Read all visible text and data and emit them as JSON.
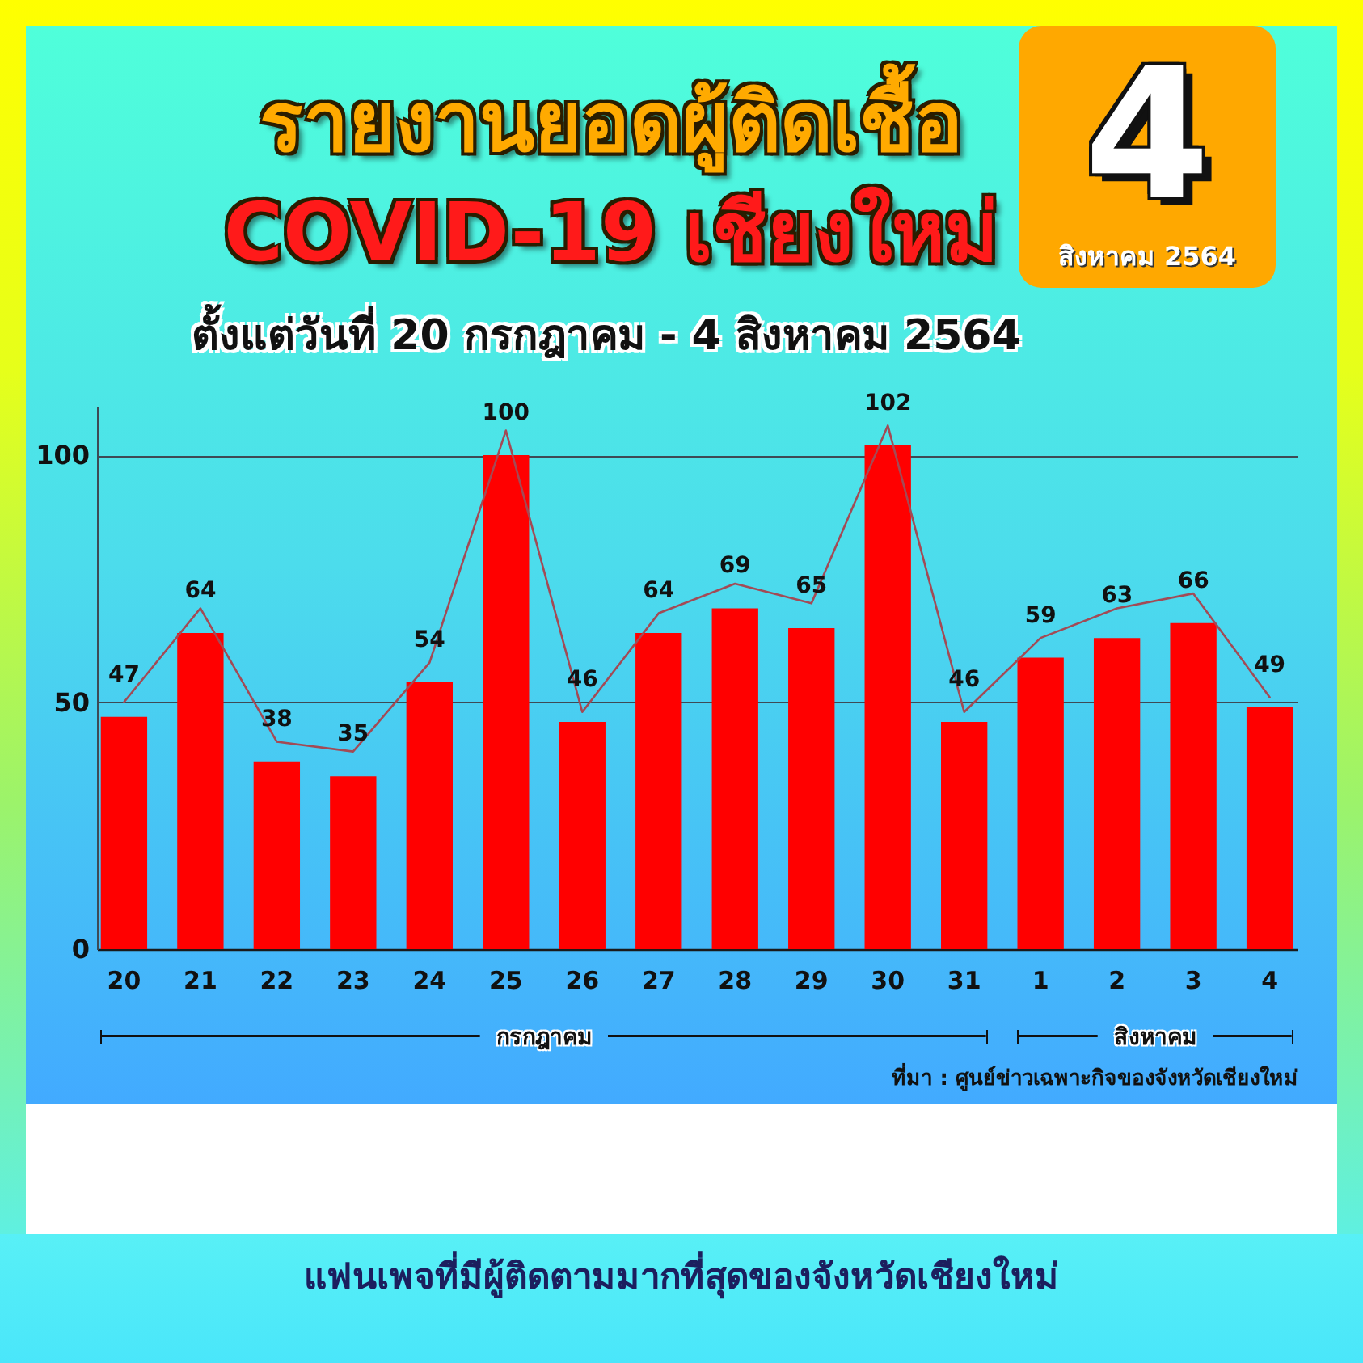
{
  "chart_data": {
    "type": "bar",
    "title": "รายงานยอดผู้ติดเชื้อ COVID-19 เชียงใหม่",
    "subtitle": "ตั้งแต่วันที่ 20 กรกฎาคม - 4 สิงหาคม 2564",
    "categories": [
      "20",
      "21",
      "22",
      "23",
      "24",
      "25",
      "26",
      "27",
      "28",
      "29",
      "30",
      "31",
      "1",
      "2",
      "3",
      "4"
    ],
    "series": [
      {
        "color": "#ff0000",
        "values": [
          47,
          64,
          38,
          35,
          54,
          100,
          46,
          64,
          69,
          65,
          102,
          46,
          59,
          63,
          66,
          49
        ],
        "value_labels": [
          "47",
          "64",
          "38",
          "35",
          "54",
          "100",
          "46",
          "64",
          "69",
          "65",
          "102",
          "46",
          "59",
          "63",
          "66",
          "49"
        ]
      },
      {
        "type": "line",
        "color": "#a34a55",
        "values": [
          50,
          69,
          42,
          40,
          58,
          105,
          48,
          68,
          74,
          70,
          106,
          48,
          63,
          69,
          72,
          51
        ]
      }
    ],
    "ylim": [
      0,
      110
    ],
    "yticks": [
      0,
      50,
      100
    ],
    "grid": "y",
    "annotations": [
      "4",
      "สิงหาคม 2564",
      "กรกฎาคม",
      "สิงหาคม",
      "ที่มา : ศูนย์ข่าวเฉพาะกิจของจังหวัดเชียงใหม่",
      "แฟนเพจที่มีผู้ติดตามมากที่สุดของจังหวัดเชียงใหม่"
    ]
  }
}
